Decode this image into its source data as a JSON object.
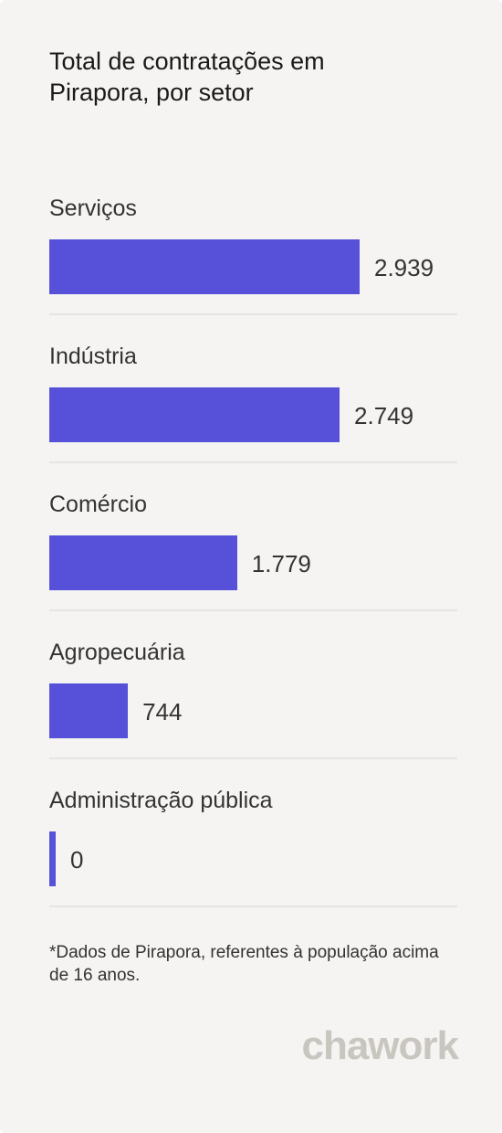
{
  "chart_data": {
    "type": "bar",
    "orientation": "horizontal",
    "title": "Total de contratações em Pirapora, por setor",
    "categories": [
      "Serviços",
      "Indústria",
      "Comércio",
      "Agropecuária",
      "Administração pública"
    ],
    "values": [
      2939,
      2749,
      1779,
      744,
      0
    ],
    "value_labels": [
      "2.939",
      "2.749",
      "1.779",
      "744",
      "0"
    ],
    "color": "#5651d8",
    "note": "*Dados de Pirapora, referentes à população acima de 16 anos.",
    "brand": "chawork"
  }
}
